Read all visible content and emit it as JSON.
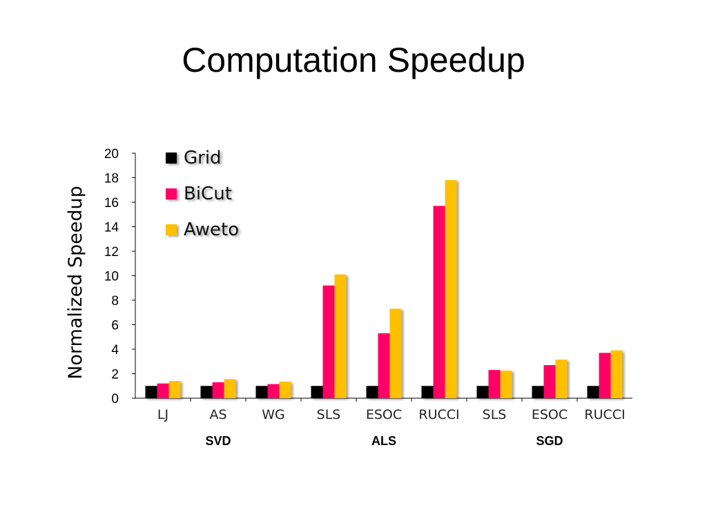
{
  "slide": {
    "title": "Computation Speedup"
  },
  "chart_data": {
    "type": "bar",
    "title": "",
    "xlabel": "",
    "ylabel": "Normalized Speedup",
    "ylim": [
      0,
      20
    ],
    "yticks": [
      0,
      2,
      4,
      6,
      8,
      10,
      12,
      14,
      16,
      18,
      20
    ],
    "categories": [
      "LJ",
      "AS",
      "WG",
      "SLS",
      "ESOC",
      "RUCCI",
      "SLS",
      "ESOC",
      "RUCCI"
    ],
    "groups": [
      {
        "label": "SVD",
        "categories": [
          0,
          1,
          2
        ]
      },
      {
        "label": "ALS",
        "categories": [
          3,
          4,
          5
        ]
      },
      {
        "label": "SGD",
        "categories": [
          6,
          7,
          8
        ]
      }
    ],
    "series": [
      {
        "name": "Grid",
        "color": "#000000",
        "values": [
          1,
          1,
          1,
          1,
          1,
          1,
          1,
          1,
          1
        ]
      },
      {
        "name": "BiCut",
        "color": "#ff0066",
        "values": [
          1.2,
          1.3,
          1.15,
          9.2,
          5.3,
          15.7,
          2.3,
          2.7,
          3.7
        ]
      },
      {
        "name": "Aweto",
        "color": "#ffc000",
        "values": [
          1.4,
          1.55,
          1.35,
          10.1,
          7.3,
          17.8,
          2.25,
          3.15,
          3.9
        ]
      }
    ],
    "legend_position": "top-left",
    "grid": false
  }
}
